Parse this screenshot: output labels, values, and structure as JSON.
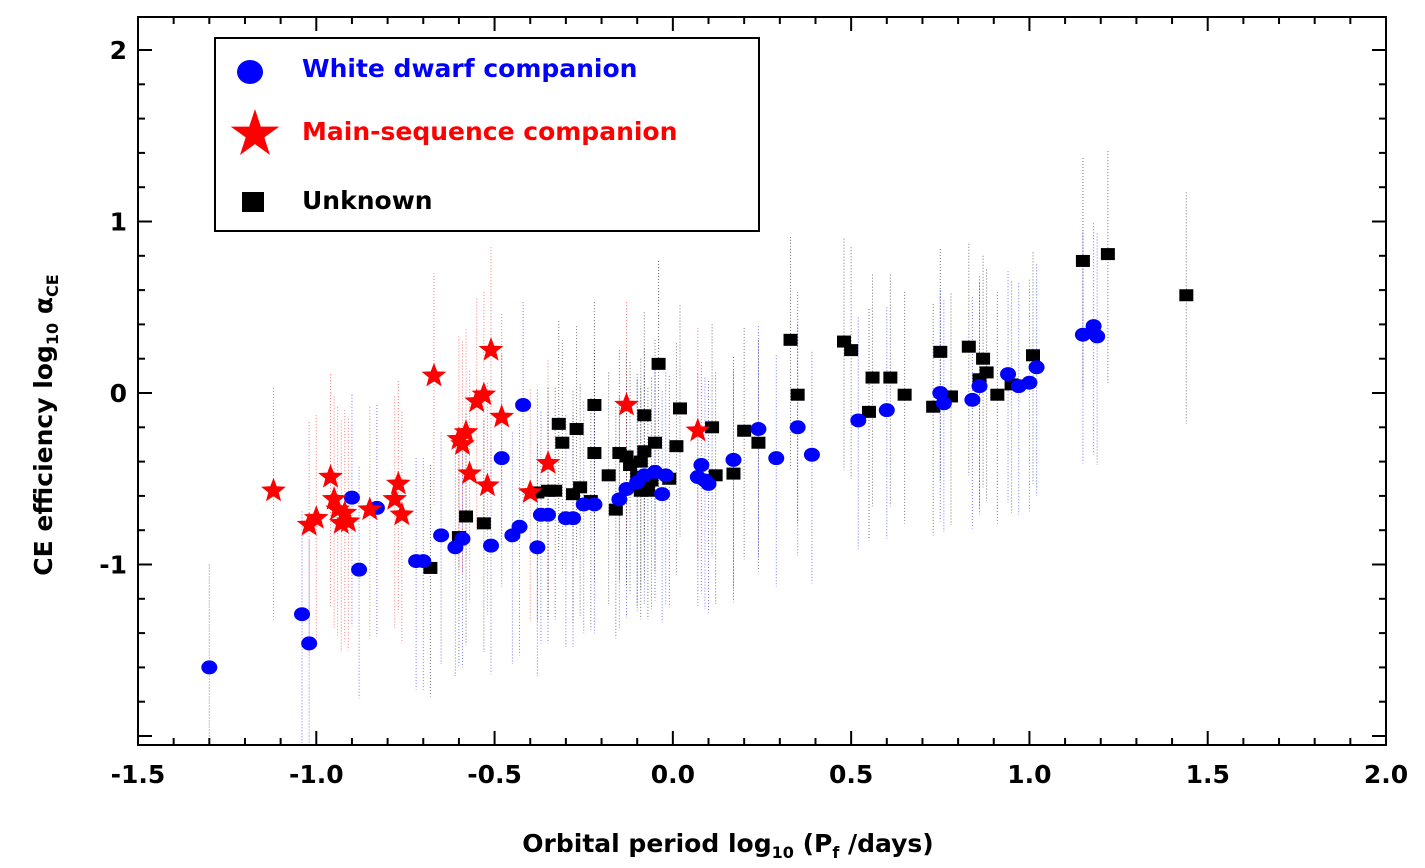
{
  "chart_data": {
    "type": "scatter",
    "xlabel": "Orbital period log10 (Pf /days)",
    "xlabel_parts": {
      "main": "Orbital period log",
      "sub1": "10",
      "mid": " (P",
      "sub2": "f",
      "end": " /days)"
    },
    "ylabel": "CE efficiency  log10 αCE",
    "ylabel_parts": {
      "main": "CE efficiency  log",
      "sub1": "10",
      "mid": " α",
      "sub2": "CE"
    },
    "xlim": [
      -1.5,
      2.0
    ],
    "ylim": [
      -2.0,
      2.2
    ],
    "x_ticks": [
      "-1.5",
      "-1.0",
      "-0.5",
      "0.0",
      "0.5",
      "1.0",
      "1.5",
      "2.0"
    ],
    "y_ticks": [
      "-1",
      "0",
      "1",
      "2"
    ],
    "legend": [
      {
        "label": "White dwarf companion",
        "color": "#0000ff",
        "marker": "circle"
      },
      {
        "label": "Main-sequence companion",
        "color": "#ff0000",
        "marker": "star"
      },
      {
        "label": "Unknown",
        "color": "#000000",
        "marker": "square"
      }
    ],
    "series": [
      {
        "name": "White dwarf companion",
        "color": "#0000ff",
        "marker": "circle",
        "points": [
          [
            -1.3,
            -1.6
          ],
          [
            -1.04,
            -1.29
          ],
          [
            -1.02,
            -1.46
          ],
          [
            -0.9,
            -0.61
          ],
          [
            -0.88,
            -1.03
          ],
          [
            -0.83,
            -0.67
          ],
          [
            -0.72,
            -0.98
          ],
          [
            -0.7,
            -0.98
          ],
          [
            -0.65,
            -0.83
          ],
          [
            -0.61,
            -0.9
          ],
          [
            -0.59,
            -0.85
          ],
          [
            -0.51,
            -0.89
          ],
          [
            -0.48,
            -0.38
          ],
          [
            -0.45,
            -0.83
          ],
          [
            -0.43,
            -0.78
          ],
          [
            -0.42,
            -0.07
          ],
          [
            -0.38,
            -0.9
          ],
          [
            -0.37,
            -0.71
          ],
          [
            -0.35,
            -0.71
          ],
          [
            -0.3,
            -0.73
          ],
          [
            -0.28,
            -0.73
          ],
          [
            -0.25,
            -0.65
          ],
          [
            -0.22,
            -0.65
          ],
          [
            -0.15,
            -0.62
          ],
          [
            -0.13,
            -0.56
          ],
          [
            -0.1,
            -0.52
          ],
          [
            -0.08,
            -0.48
          ],
          [
            -0.05,
            -0.46
          ],
          [
            -0.03,
            -0.59
          ],
          [
            -0.02,
            -0.48
          ],
          [
            0.07,
            -0.49
          ],
          [
            0.08,
            -0.42
          ],
          [
            0.09,
            -0.51
          ],
          [
            0.1,
            -0.53
          ],
          [
            0.17,
            -0.39
          ],
          [
            0.24,
            -0.21
          ],
          [
            0.29,
            -0.38
          ],
          [
            0.35,
            -0.2
          ],
          [
            0.39,
            -0.36
          ],
          [
            0.52,
            -0.16
          ],
          [
            0.6,
            -0.1
          ],
          [
            0.75,
            0.0
          ],
          [
            0.76,
            -0.06
          ],
          [
            0.84,
            -0.04
          ],
          [
            0.86,
            0.04
          ],
          [
            0.94,
            0.11
          ],
          [
            0.97,
            0.04
          ],
          [
            1.0,
            0.06
          ],
          [
            1.02,
            0.15
          ],
          [
            1.15,
            0.34
          ],
          [
            1.18,
            0.39
          ],
          [
            1.19,
            0.33
          ]
        ]
      },
      {
        "name": "Main-sequence companion",
        "color": "#ff0000",
        "marker": "star",
        "points": [
          [
            -1.12,
            -0.57
          ],
          [
            -1.02,
            -0.77
          ],
          [
            -1.0,
            -0.73
          ],
          [
            -0.96,
            -0.49
          ],
          [
            -0.95,
            -0.62
          ],
          [
            -0.94,
            -0.68
          ],
          [
            -0.93,
            -0.76
          ],
          [
            -0.92,
            -0.7
          ],
          [
            -0.91,
            -0.75
          ],
          [
            -0.85,
            -0.68
          ],
          [
            -0.78,
            -0.62
          ],
          [
            -0.77,
            -0.53
          ],
          [
            -0.76,
            -0.71
          ],
          [
            -0.67,
            0.1
          ],
          [
            -0.6,
            -0.27
          ],
          [
            -0.59,
            -0.3
          ],
          [
            -0.58,
            -0.23
          ],
          [
            -0.57,
            -0.47
          ],
          [
            -0.55,
            -0.05
          ],
          [
            -0.53,
            -0.01
          ],
          [
            -0.52,
            -0.54
          ],
          [
            -0.51,
            0.25
          ],
          [
            -0.48,
            -0.14
          ],
          [
            -0.4,
            -0.58
          ],
          [
            -0.35,
            -0.41
          ],
          [
            -0.13,
            -0.07
          ],
          [
            0.07,
            -0.22
          ]
        ]
      },
      {
        "name": "Unknown",
        "color": "#000000",
        "marker": "square",
        "points": [
          [
            -0.68,
            -1.02
          ],
          [
            -0.6,
            -0.84
          ],
          [
            -0.58,
            -0.72
          ],
          [
            -0.53,
            -0.76
          ],
          [
            -0.38,
            -0.58
          ],
          [
            -0.35,
            -0.57
          ],
          [
            -0.33,
            -0.57
          ],
          [
            -0.32,
            -0.18
          ],
          [
            -0.31,
            -0.29
          ],
          [
            -0.28,
            -0.59
          ],
          [
            -0.27,
            -0.21
          ],
          [
            -0.26,
            -0.55
          ],
          [
            -0.23,
            -0.63
          ],
          [
            -0.22,
            -0.35
          ],
          [
            -0.22,
            -0.07
          ],
          [
            -0.18,
            -0.48
          ],
          [
            -0.16,
            -0.68
          ],
          [
            -0.15,
            -0.35
          ],
          [
            -0.13,
            -0.37
          ],
          [
            -0.12,
            -0.42
          ],
          [
            -0.1,
            -0.49
          ],
          [
            -0.09,
            -0.4
          ],
          [
            -0.09,
            -0.57
          ],
          [
            -0.08,
            -0.34
          ],
          [
            -0.08,
            -0.13
          ],
          [
            -0.07,
            -0.57
          ],
          [
            -0.06,
            -0.51
          ],
          [
            -0.05,
            -0.29
          ],
          [
            -0.04,
            0.17
          ],
          [
            -0.01,
            -0.5
          ],
          [
            0.01,
            -0.31
          ],
          [
            0.02,
            -0.09
          ],
          [
            0.11,
            -0.2
          ],
          [
            0.12,
            -0.48
          ],
          [
            0.2,
            -0.22
          ],
          [
            0.24,
            -0.29
          ],
          [
            0.17,
            -0.47
          ],
          [
            0.33,
            0.31
          ],
          [
            0.35,
            -0.01
          ],
          [
            0.48,
            0.3
          ],
          [
            0.5,
            0.25
          ],
          [
            0.55,
            -0.11
          ],
          [
            0.56,
            0.09
          ],
          [
            0.61,
            0.09
          ],
          [
            0.65,
            -0.01
          ],
          [
            0.73,
            -0.08
          ],
          [
            0.75,
            0.24
          ],
          [
            0.78,
            -0.02
          ],
          [
            0.83,
            0.27
          ],
          [
            0.86,
            0.08
          ],
          [
            0.87,
            0.2
          ],
          [
            0.88,
            0.12
          ],
          [
            0.91,
            -0.01
          ],
          [
            0.95,
            0.05
          ],
          [
            1.01,
            0.22
          ],
          [
            1.15,
            0.77
          ],
          [
            1.22,
            0.81
          ],
          [
            1.44,
            0.57
          ]
        ]
      }
    ]
  }
}
